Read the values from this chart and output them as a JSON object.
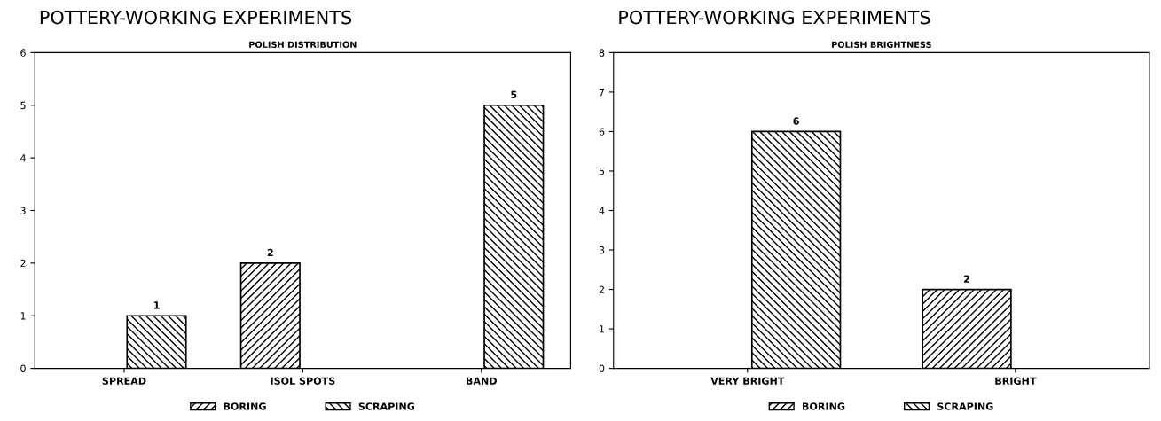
{
  "chart_data": [
    {
      "type": "bar",
      "title": "POTTERY-WORKING EXPERIMENTS",
      "subtitle": "POLISH DISTRIBUTION",
      "categories": [
        "SPREAD",
        "ISOL SPOTS",
        "BAND"
      ],
      "series": [
        {
          "name": "BORING",
          "color": "#000000",
          "values": [
            null,
            2,
            null
          ]
        },
        {
          "name": "SCRAPING",
          "color": "#000000",
          "values": [
            1,
            null,
            5
          ]
        }
      ],
      "ylim": [
        0,
        6
      ],
      "yticks": [
        0,
        1,
        2,
        3,
        4,
        5,
        6
      ],
      "data_labels": true,
      "grid": false,
      "legend": "bottom"
    },
    {
      "type": "bar",
      "title": "POTTERY-WORKING EXPERIMENTS",
      "subtitle": "POLISH BRIGHTNESS",
      "categories": [
        "VERY BRIGHT",
        "BRIGHT"
      ],
      "series": [
        {
          "name": "BORING",
          "color": "#000000",
          "values": [
            null,
            2
          ]
        },
        {
          "name": "SCRAPING",
          "color": "#000000",
          "values": [
            6,
            null
          ]
        }
      ],
      "ylim": [
        0,
        8
      ],
      "yticks": [
        0,
        1,
        2,
        3,
        4,
        5,
        6,
        7,
        8
      ],
      "data_labels": true,
      "grid": false,
      "legend": "bottom"
    }
  ]
}
